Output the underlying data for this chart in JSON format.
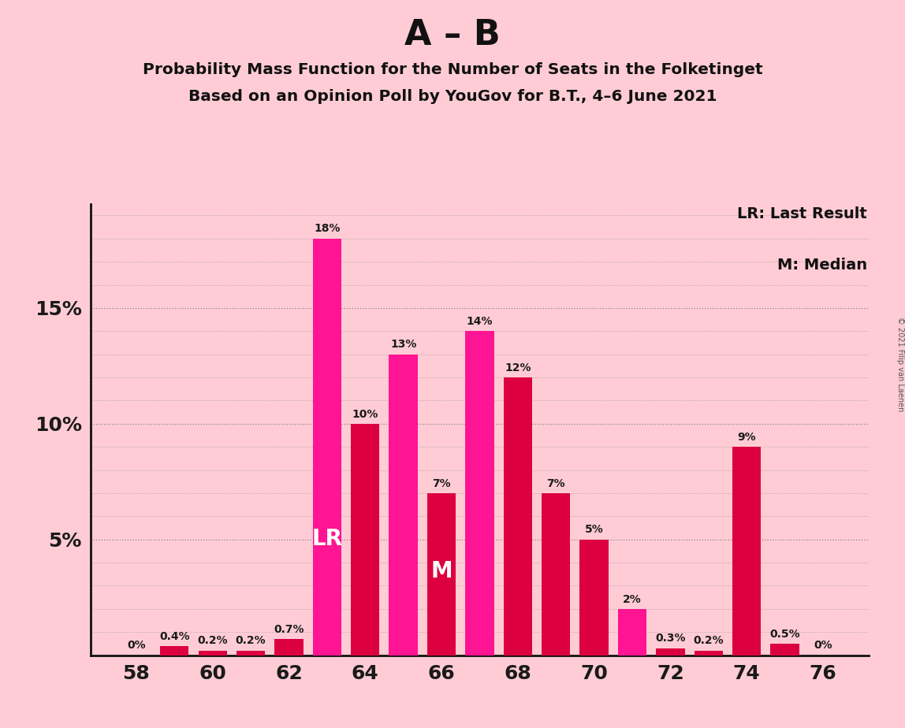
{
  "title_main": "A – B",
  "title_sub1": "Probability Mass Function for the Number of Seats in the Folketinget",
  "title_sub2": "Based on an Opinion Poll by YouGov for B.T., 4–6 June 2021",
  "copyright": "© 2021 Filip van Laenen",
  "seats": [
    58,
    59,
    60,
    61,
    62,
    63,
    64,
    65,
    66,
    67,
    68,
    69,
    70,
    71,
    72,
    73,
    74,
    75,
    76
  ],
  "values": [
    0.0,
    0.4,
    0.2,
    0.2,
    0.7,
    18.0,
    10.0,
    13.0,
    7.0,
    14.0,
    12.0,
    7.0,
    5.0,
    2.0,
    0.3,
    0.2,
    9.0,
    0.5,
    0.0
  ],
  "labels": [
    "0%",
    "0.4%",
    "0.2%",
    "0.2%",
    "0.7%",
    "18%",
    "10%",
    "13%",
    "7%",
    "14%",
    "12%",
    "7%",
    "5%",
    "2%",
    "0.3%",
    "0.2%",
    "9%",
    "0.5%",
    "0%"
  ],
  "colors": [
    "#DC0040",
    "#DC0040",
    "#DC0040",
    "#DC0040",
    "#DC0040",
    "#FF1493",
    "#DC0040",
    "#FF1493",
    "#DC0040",
    "#FF1493",
    "#DC0040",
    "#DC0040",
    "#DC0040",
    "#FF1493",
    "#DC0040",
    "#DC0040",
    "#DC0040",
    "#DC0040",
    "#DC0040"
  ],
  "lr_seat": 63,
  "median_seat": 66,
  "background_color": "#FFCCD5",
  "ylim": [
    0,
    19.5
  ],
  "grid_color": "#888888",
  "label_color": "#1a1a1a",
  "ytick_positions": [
    5,
    10,
    15
  ],
  "ytick_labels": [
    "5%",
    "10%",
    "15%"
  ]
}
